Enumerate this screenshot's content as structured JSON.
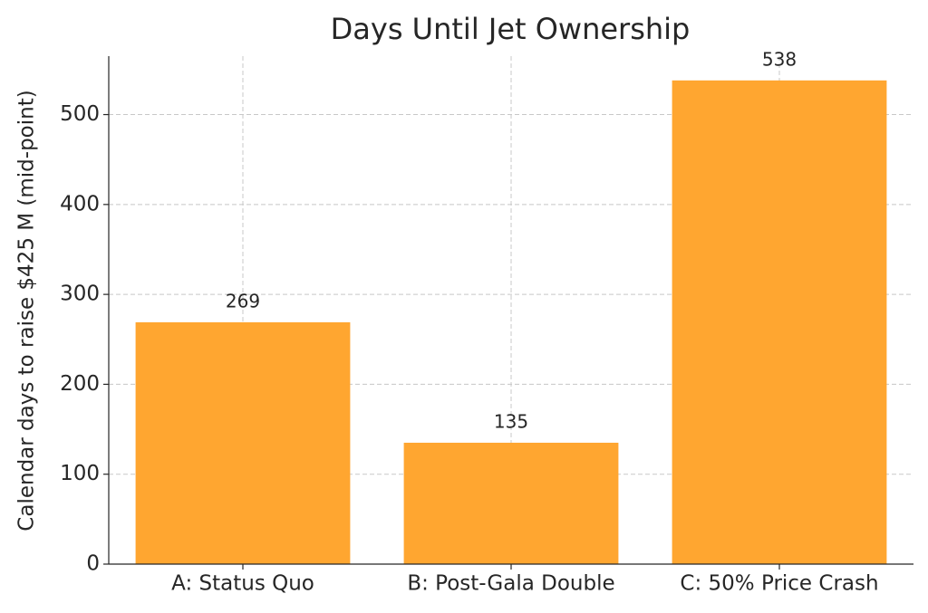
{
  "chart_data": {
    "type": "bar",
    "title": "Days Until Jet Ownership",
    "y_label": "Calendar days to raise $425 M (mid-point)",
    "categories": [
      "A: Status Quo",
      "B: Post-Gala Double",
      "C: 50% Price Crash"
    ],
    "values": [
      269,
      135,
      538
    ],
    "color": "#ffa630",
    "ylim": [
      0,
      565
    ],
    "yticks": [
      0,
      100,
      200,
      300,
      400,
      500
    ],
    "grid": true
  }
}
